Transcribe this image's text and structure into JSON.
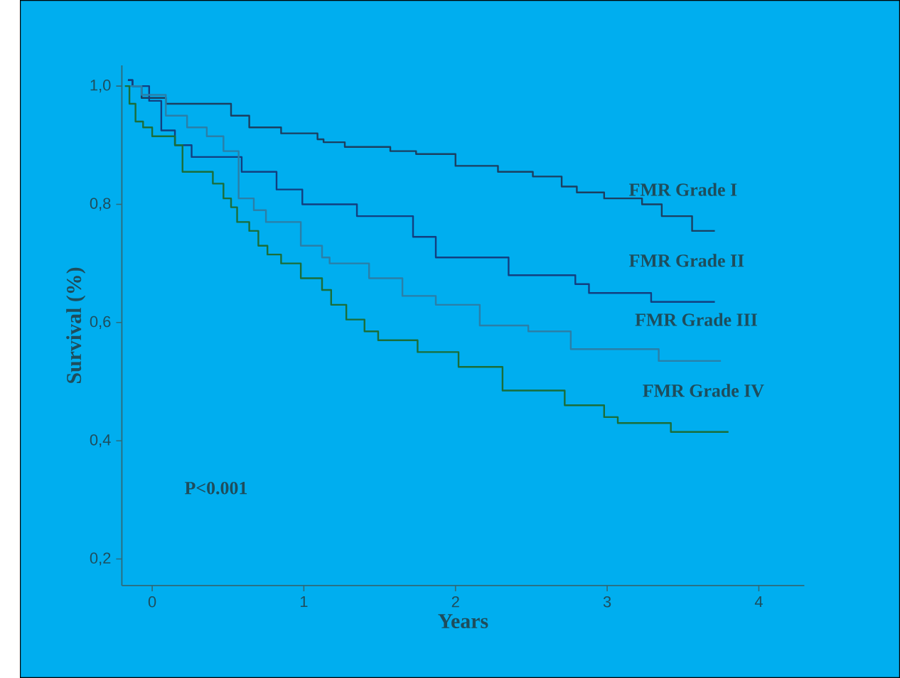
{
  "chart_data": {
    "type": "step",
    "xlabel": "Years",
    "ylabel": "Survival (%)",
    "xlim": [
      -0.2,
      4.3
    ],
    "ylim": [
      0.155,
      1.035
    ],
    "xticks": [
      0,
      1,
      2,
      3,
      4
    ],
    "yticks": [
      {
        "value": 0.2,
        "label": "0,2"
      },
      {
        "value": 0.4,
        "label": "0,4"
      },
      {
        "value": 0.6,
        "label": "0,6"
      },
      {
        "value": 0.8,
        "label": "0,8"
      },
      {
        "value": 1.0,
        "label": "1,0"
      }
    ],
    "annotations": [
      "P<0.001"
    ],
    "series": [
      {
        "name": "FMR Grade I",
        "color": "#1b3f60",
        "x": [
          -0.16,
          -0.13,
          -0.07,
          0.09,
          0.52,
          0.64,
          0.85,
          1.09,
          1.13,
          1.27,
          1.57,
          1.74,
          2.0,
          2.28,
          2.51,
          2.7,
          2.8,
          2.98,
          3.23,
          3.36,
          3.56,
          3.71
        ],
        "values": [
          1.01,
          1.0,
          0.98,
          0.97,
          0.95,
          0.93,
          0.92,
          0.91,
          0.905,
          0.897,
          0.89,
          0.885,
          0.865,
          0.855,
          0.847,
          0.83,
          0.82,
          0.81,
          0.8,
          0.78,
          0.755,
          0.755
        ]
      },
      {
        "name": "FMR Grade II",
        "color": "#123f80",
        "x": [
          -0.16,
          -0.13,
          -0.02,
          0.06,
          0.15,
          0.26,
          0.59,
          0.82,
          0.99,
          1.35,
          1.72,
          1.87,
          2.35,
          2.79,
          2.88,
          3.29,
          3.71
        ],
        "values": [
          1.01,
          1.0,
          0.975,
          0.925,
          0.9,
          0.88,
          0.855,
          0.825,
          0.8,
          0.78,
          0.745,
          0.71,
          0.68,
          0.665,
          0.65,
          0.635,
          0.635
        ]
      },
      {
        "name": "FMR Grade III",
        "color": "#2a7fa8",
        "x": [
          -0.16,
          -0.07,
          0.09,
          0.23,
          0.36,
          0.47,
          0.57,
          0.67,
          0.75,
          0.98,
          1.12,
          1.17,
          1.43,
          1.65,
          1.87,
          2.16,
          2.48,
          2.76,
          3.34,
          3.75
        ],
        "values": [
          1.0,
          0.985,
          0.95,
          0.93,
          0.915,
          0.89,
          0.81,
          0.79,
          0.77,
          0.73,
          0.71,
          0.7,
          0.675,
          0.645,
          0.63,
          0.595,
          0.585,
          0.555,
          0.535,
          0.535
        ]
      },
      {
        "name": "FMR Grade IV",
        "color": "#1a6e3a",
        "x": [
          -0.18,
          -0.15,
          -0.11,
          -0.06,
          0.0,
          0.15,
          0.2,
          0.4,
          0.47,
          0.52,
          0.56,
          0.64,
          0.7,
          0.76,
          0.85,
          0.98,
          1.12,
          1.18,
          1.28,
          1.4,
          1.49,
          1.75,
          2.02,
          2.31,
          2.72,
          2.98,
          3.07,
          3.42,
          3.8
        ],
        "values": [
          1.0,
          0.97,
          0.94,
          0.93,
          0.915,
          0.9,
          0.855,
          0.835,
          0.81,
          0.795,
          0.77,
          0.755,
          0.73,
          0.715,
          0.7,
          0.675,
          0.655,
          0.63,
          0.605,
          0.585,
          0.57,
          0.55,
          0.525,
          0.485,
          0.46,
          0.44,
          0.43,
          0.415,
          0.415
        ]
      }
    ]
  }
}
